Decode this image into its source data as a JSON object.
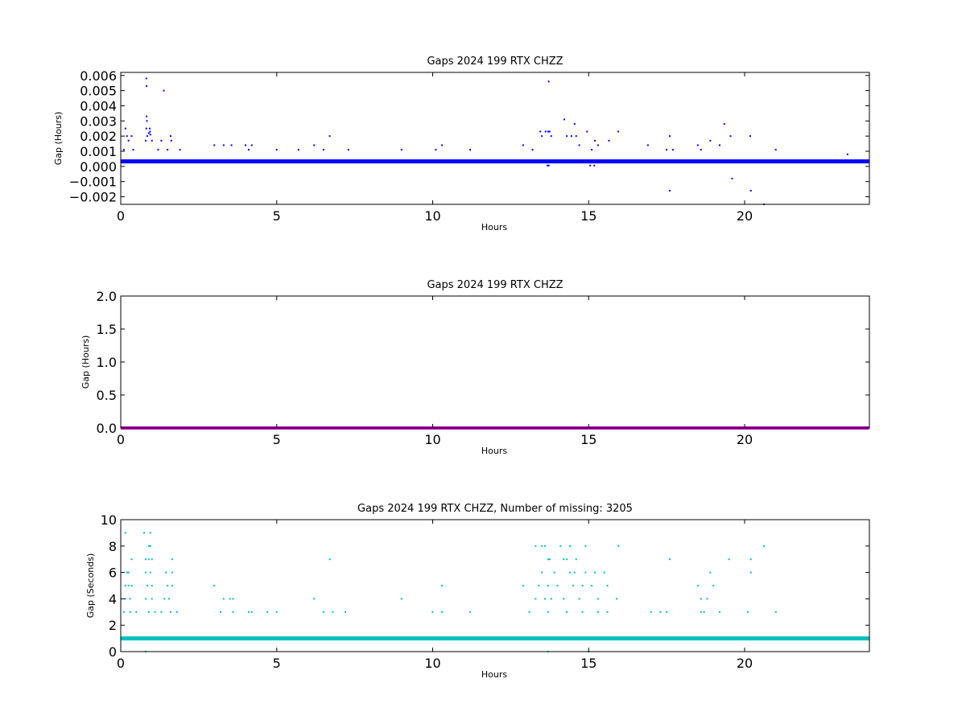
{
  "figure": {
    "background": "#ffffff"
  },
  "chart_data": [
    {
      "type": "scatter",
      "title": "Gaps 2024 199 RTX  CHZZ",
      "xlabel": "Hours",
      "ylabel": "Gap (Hours)",
      "xlim": [
        0,
        24
      ],
      "ylim": [
        -0.0025,
        0.0062
      ],
      "xticks": [
        0,
        5,
        10,
        15,
        20
      ],
      "yticks": [
        -0.002,
        -0.001,
        0.0,
        0.001,
        0.002,
        0.003,
        0.004,
        0.005,
        0.006
      ],
      "ytick_labels": [
        "−0.002",
        "−0.001",
        "0.000",
        "0.001",
        "0.002",
        "0.003",
        "0.004",
        "0.005",
        "0.006"
      ],
      "color": "#0000ff",
      "grid": false,
      "baseline": {
        "y": 0.00033,
        "x_range": [
          0,
          24
        ]
      },
      "series": [
        {
          "x": [
            0.82,
            0.83,
            1.38,
            13.72,
            0.83,
            0.84,
            0.15,
            0.82,
            0.93,
            0.94,
            14.22,
            14.55,
            19.35,
            13.45,
            13.62,
            13.7,
            13.75,
            14.95,
            15.95,
            0.9,
            0.95,
            1.6,
            0.2,
            0.35,
            0.85,
            6.7,
            17.6,
            19.55,
            20.18,
            13.5,
            13.8,
            14.3,
            14.45,
            14.6,
            18.9,
            0.25,
            0.8,
            1.0,
            1.3,
            1.62,
            15.2,
            15.65,
            3.0,
            3.3,
            3.55,
            4.0,
            4.2,
            6.2,
            9.0,
            10.3,
            11.2,
            12.9,
            14.7,
            15.3,
            16.9,
            18.5,
            19.2,
            0.1,
            0.4,
            1.2,
            1.5,
            1.9,
            4.1,
            5.0,
            5.7,
            6.5,
            7.3,
            10.1,
            13.2,
            15.1,
            17.5,
            17.7,
            18.6,
            21.0,
            23.3,
            13.72,
            13.68,
            15.05,
            15.18,
            19.6,
            17.6,
            20.2,
            20.62
          ],
          "y": [
            0.0058,
            0.0053,
            0.005,
            0.0056,
            0.0033,
            0.003,
            0.0025,
            0.0025,
            0.0025,
            0.0023,
            0.0031,
            0.0028,
            0.0028,
            0.0023,
            0.0023,
            0.0023,
            0.0023,
            0.0023,
            0.0023,
            0.0022,
            0.0021,
            0.002,
            0.002,
            0.002,
            0.002,
            0.002,
            0.002,
            0.002,
            0.002,
            0.002,
            0.002,
            0.002,
            0.002,
            0.002,
            0.0017,
            0.0017,
            0.0017,
            0.0017,
            0.0017,
            0.0017,
            0.0017,
            0.0017,
            0.0014,
            0.0014,
            0.0014,
            0.0014,
            0.0014,
            0.0014,
            0.0011,
            0.0014,
            0.0011,
            0.0014,
            0.0014,
            0.0014,
            0.0014,
            0.0014,
            0.0014,
            0.0011,
            0.0011,
            0.0011,
            0.0011,
            0.0011,
            0.0011,
            0.0011,
            0.0011,
            0.0011,
            0.0011,
            0.0011,
            0.0011,
            0.0011,
            0.0011,
            0.0011,
            0.0011,
            0.0011,
            0.0008,
            6e-05,
            6e-05,
            6e-05,
            6e-05,
            -0.0008,
            -0.0016,
            -0.0016,
            -0.0025
          ]
        }
      ]
    },
    {
      "type": "line",
      "title": "Gaps 2024 199 RTX  CHZZ",
      "xlabel": "Hours",
      "ylabel": "Gap (Hours)",
      "xlim": [
        0,
        24
      ],
      "ylim": [
        0,
        2.0
      ],
      "xticks": [
        0,
        5,
        10,
        15,
        20
      ],
      "yticks": [
        0.0,
        0.5,
        1.0,
        1.5,
        2.0
      ],
      "ytick_labels": [
        "0.0",
        "0.5",
        "1.0",
        "1.5",
        "2.0"
      ],
      "color": "#bf00bf",
      "grid": false,
      "series": [
        {
          "x": [
            0,
            24
          ],
          "y": [
            0.0003,
            0.0003
          ]
        }
      ]
    },
    {
      "type": "scatter",
      "title": "Gaps 2024 199 RTX  CHZZ, Number of missing: 3205",
      "xlabel": "Hours",
      "ylabel": "Gap (Seconds)",
      "xlim": [
        0,
        24
      ],
      "ylim": [
        0,
        10
      ],
      "xticks": [
        0,
        5,
        10,
        15,
        20
      ],
      "yticks": [
        0,
        2,
        4,
        6,
        8,
        10
      ],
      "ytick_labels": [
        "0",
        "2",
        "4",
        "6",
        "8",
        "10"
      ],
      "color": "#00bfbf",
      "grid": false,
      "baseline": {
        "y": 1,
        "x_range": [
          0,
          24
        ]
      },
      "series": [
        {
          "x": [
            0.15,
            0.75,
            0.95,
            0.9,
            0.95,
            13.3,
            13.5,
            13.6,
            14.1,
            14.4,
            14.9,
            15.95,
            20.62,
            0.35,
            0.8,
            0.9,
            1.0,
            1.65,
            6.7,
            13.7,
            13.75,
            14.2,
            14.3,
            14.6,
            17.6,
            19.5,
            20.2,
            0.2,
            0.25,
            0.8,
            0.95,
            1.45,
            1.65,
            13.5,
            13.9,
            14.4,
            14.55,
            14.9,
            15.2,
            15.5,
            18.9,
            20.2,
            0.15,
            0.25,
            0.35,
            0.85,
            1.0,
            1.5,
            1.65,
            3.0,
            12.9,
            13.4,
            13.7,
            14.0,
            14.5,
            14.8,
            15.1,
            15.6,
            18.5,
            19.0,
            10.3,
            0.15,
            0.3,
            0.8,
            1.0,
            1.4,
            1.55,
            3.3,
            3.5,
            3.6,
            6.2,
            9.0,
            13.3,
            13.6,
            13.8,
            14.2,
            14.7,
            15.3,
            15.9,
            18.6,
            18.8,
            0.1,
            0.3,
            0.5,
            0.9,
            1.1,
            1.3,
            1.6,
            1.8,
            3.2,
            3.6,
            4.1,
            4.2,
            4.7,
            5.0,
            6.5,
            6.8,
            7.2,
            10.0,
            10.3,
            11.2,
            13.1,
            13.7,
            14.3,
            14.8,
            15.3,
            15.6,
            17.0,
            17.3,
            17.5,
            18.6,
            18.7,
            19.2,
            20.1,
            21.0,
            0.8,
            13.7,
            15.0
          ],
          "y": [
            9,
            9,
            9,
            8,
            8,
            8,
            8,
            8,
            8,
            8,
            8,
            8,
            8,
            7,
            7,
            7,
            7,
            7,
            7,
            7,
            7,
            7,
            7,
            7,
            7,
            7,
            7,
            6,
            6,
            6,
            6,
            6,
            6,
            6,
            6,
            6,
            6,
            6,
            6,
            6,
            6,
            6,
            5,
            5,
            5,
            5,
            5,
            5,
            5,
            5,
            5,
            5,
            5,
            5,
            5,
            5,
            5,
            5,
            5,
            5,
            5,
            4,
            4,
            4,
            4,
            4,
            4,
            4,
            4,
            4,
            4,
            4,
            4,
            4,
            4,
            4,
            4,
            4,
            4,
            4,
            4,
            3,
            3,
            3,
            3,
            3,
            3,
            3,
            3,
            3,
            3,
            3,
            3,
            3,
            3,
            3,
            3,
            3,
            3,
            3,
            3,
            3,
            3,
            3,
            3,
            3,
            3,
            3,
            3,
            3,
            3,
            3,
            3,
            3,
            3,
            0,
            0,
            0
          ]
        }
      ]
    }
  ]
}
